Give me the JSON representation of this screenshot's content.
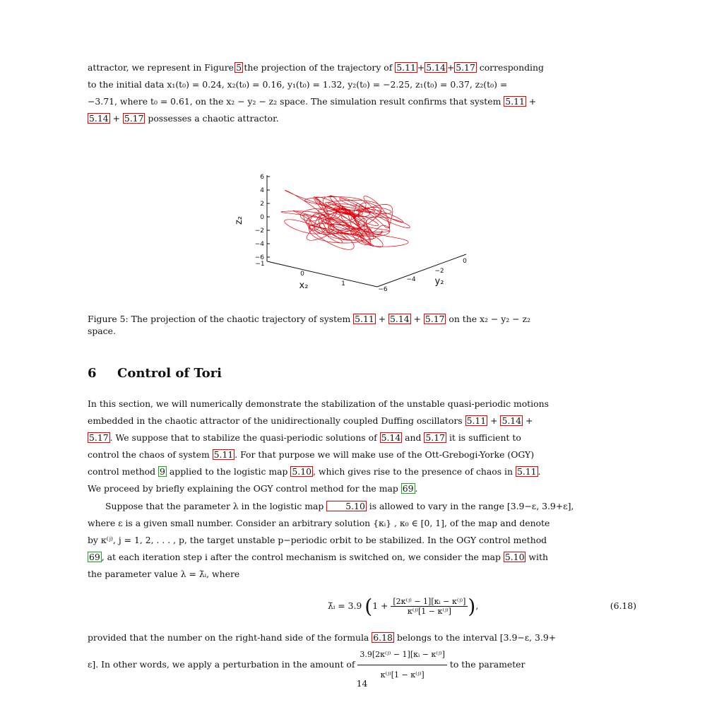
{
  "intro": {
    "line1_a": "attractor, we represent in Figure",
    "fig_ref": "5",
    "line1_b": "the projection of the trajectory of",
    "ref_a": "5.11",
    "ref_b": "5.14",
    "ref_c": "5.17",
    "line1_c": "corresponding",
    "line2": "to the initial data x₁(t₀) = 0.24, x₂(t₀) = 0.16, y₁(t₀) = 1.32, y₂(t₀) = −2.25, z₁(t₀) = 0.37, z₂(t₀) =",
    "line3": "−3.71, where t₀ = 0.61, on the x₂ − y₂ − z₂ space. The simulation result confirms that system",
    "line4_end": "possesses a chaotic attractor."
  },
  "figure": {
    "z_label": "z₂",
    "x_label": "x₂",
    "y_label": "y₂",
    "z_ticks": [
      "6",
      "4",
      "2",
      "0",
      "−2",
      "−4",
      "−6"
    ],
    "x_ticks": [
      "−1",
      "0",
      "1"
    ],
    "y_ticks": [
      "0",
      "−2",
      "−4",
      "−6"
    ]
  },
  "caption": {
    "prefix": "Figure 5: The projection of the chaotic trajectory of system",
    "suffix": "on the x₂ − y₂ − z₂",
    "line2": "space."
  },
  "section": {
    "number": "6",
    "title": "Control of Tori"
  },
  "body": {
    "p1_l1": "In this section, we will numerically demonstrate the stabilization of the unstable quasi-periodic motions",
    "p1_l2": "embedded in the chaotic attractor of the unidirectionally coupled Duffing oscillators",
    "p1_l3a": ". We suppose that to stabilize the quasi-periodic solutions of",
    "p1_and": "and",
    "p1_l3b": "it is sufficient to",
    "p1_l4a": "control the chaos of system",
    "p1_l4b": ". For that purpose we will make use of the Ott-Grebogi-Yorke (OGY)",
    "p1_l5a": "control method",
    "cite_9": "9",
    "p1_l5b": "applied to the logistic map",
    "ref_510": "5.10",
    "p1_l5c": ", which gives rise to the presence of chaos in",
    "p1_l6a": "We proceed by briefly explaining the OGY control method for the map",
    "cite_69": "69",
    "p2_l1a": "Suppose that the parameter λ in the logistic map",
    "p2_l1b": "is allowed to vary in the range [3.9−ε, 3.9+ε],",
    "p2_l2": "where ε is a given small number. Consider an arbitrary solution {κᵢ} , κ₀ ∈ [0, 1], of the map and denote",
    "p2_l3": "by κ⁽ʲ⁾, j = 1, 2, . . . , p, the target unstable p−periodic orbit to be stabilized. In the OGY control method",
    "p2_l4b": ", at each iteration step i after the control mechanism is switched on, we consider the map",
    "p2_l4c": "with",
    "p2_l5": "the parameter value λ = λ̄ᵢ, where"
  },
  "equation": {
    "lhs": "λ̄ᵢ = 3.9",
    "one_plus": "1 +",
    "numerator": "[2κ⁽ʲ⁾ − 1][κᵢ − κ⁽ʲ⁾]",
    "denominator": "κ⁽ʲ⁾[1 − κ⁽ʲ⁾]",
    "tail": ",",
    "number": "(6.18)",
    "ref": "6.18"
  },
  "after": {
    "l1a": "provided that the number on the right-hand side of the formula",
    "l1b": "belongs to the interval [3.9−ε, 3.9+",
    "l2a": "ε]. In other words, we apply a perturbation in the amount of",
    "frac_num": "3.9[2κ⁽ʲ⁾ − 1][κᵢ − κ⁽ʲ⁾]",
    "frac_den": "κ⁽ʲ⁾[1 − κ⁽ʲ⁾]",
    "l2b": "to the parameter"
  },
  "page_number": "14",
  "colors": {
    "trajectory": "#e8000b",
    "ref_box": "#ee0000",
    "cite_box": "#22aa22"
  }
}
